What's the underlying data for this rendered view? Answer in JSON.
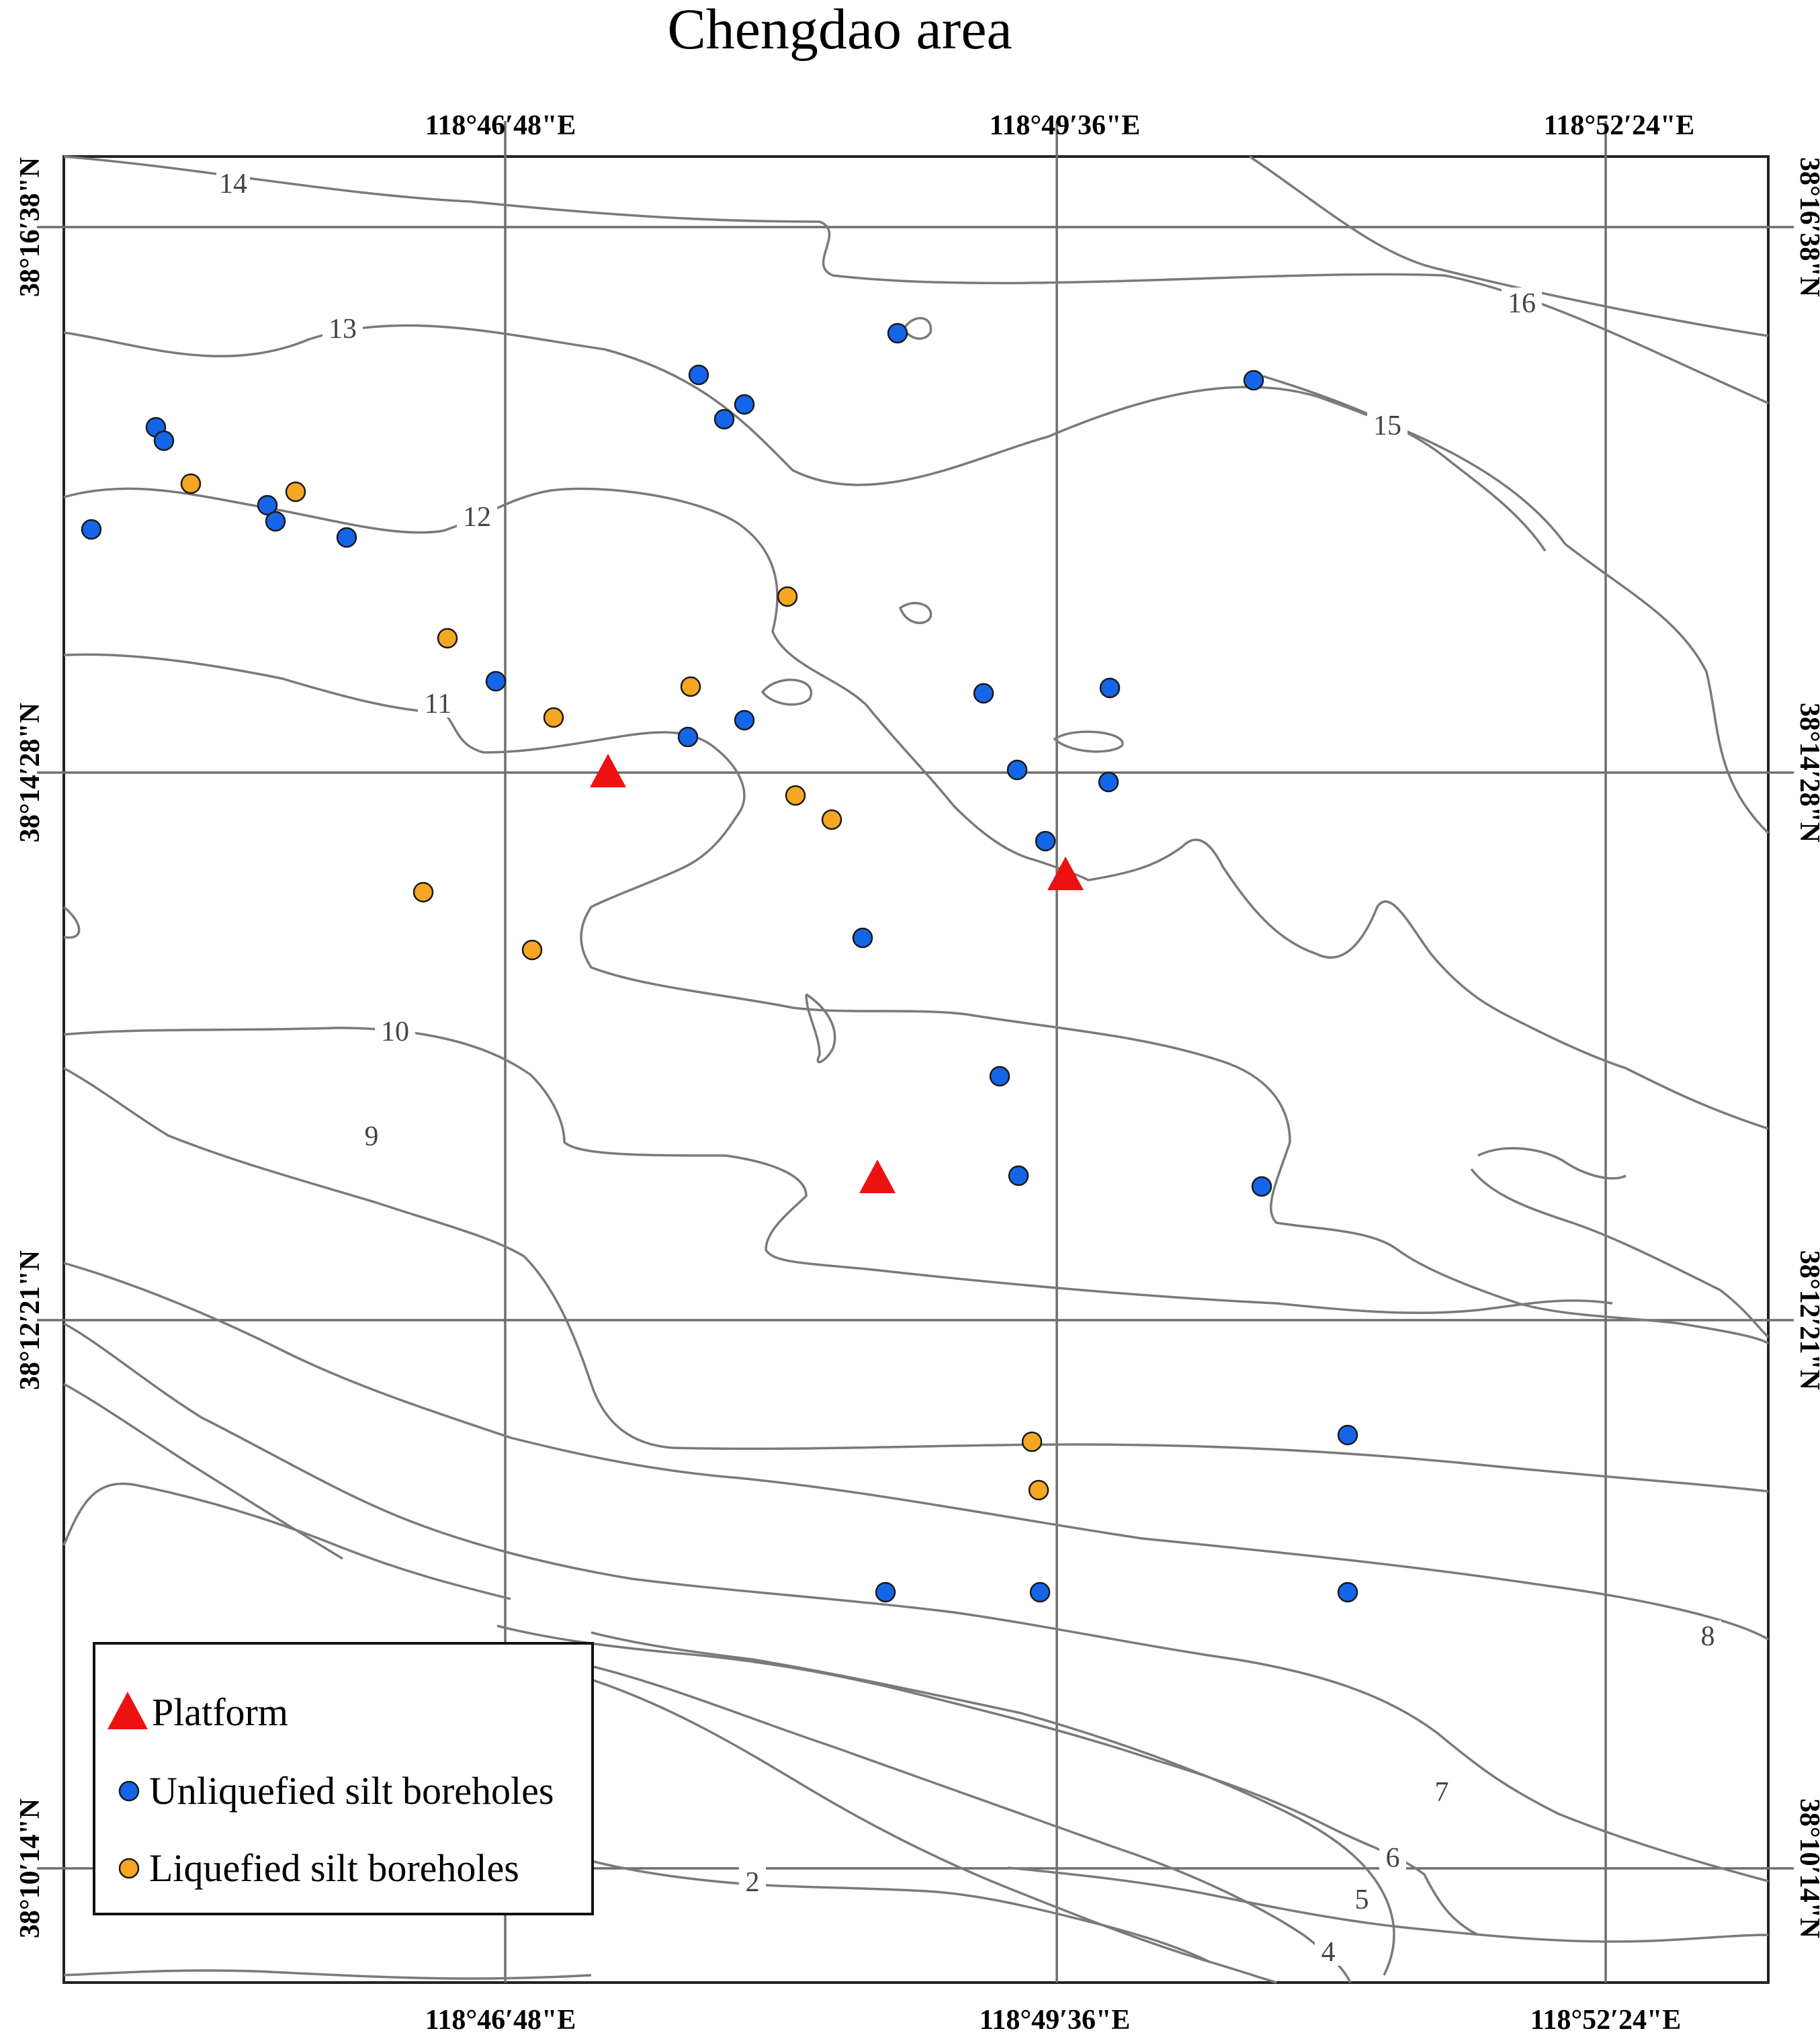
{
  "title": "Chengdao area",
  "top_lon_labels": [
    "118°46′48\"E",
    "118°49′36\"E",
    "118°52′24\"E"
  ],
  "bottom_lon_labels": [
    "118°46′48\"E",
    "118°49′36\"E",
    "118°52′24\"E"
  ],
  "left_lat_labels": [
    "38°16′38\"N",
    "38°14′28\"N",
    "38°12′21\"N",
    "38°10′14\"N"
  ],
  "right_lat_labels": [
    "38°16′38\"N",
    "38°14′28\"N",
    "38°12′21\"N",
    "38°10′14\"N"
  ],
  "contour_labels": [
    "14",
    "13",
    "12",
    "11",
    "10",
    "9",
    "16",
    "15",
    "8",
    "7",
    "6",
    "5",
    "4",
    "2"
  ],
  "legend": {
    "platform": "Platform",
    "unliquefied": "Unliquefied silt boreholes",
    "liquefied": "Liquefied silt boreholes"
  },
  "colors": {
    "platform": "#ee1111",
    "unliquefied": "#1565e8",
    "liquefied": "#f5a623",
    "contour": "#7a7a7a",
    "grid": "#6e6e6e"
  },
  "icons": {
    "platform": "triangle-icon",
    "unliquefied": "blue-dot-icon",
    "liquefied": "orange-dot-icon"
  },
  "counts": {
    "platforms": 3,
    "unliquefied_boreholes": 29,
    "liquefied_boreholes": 14
  }
}
